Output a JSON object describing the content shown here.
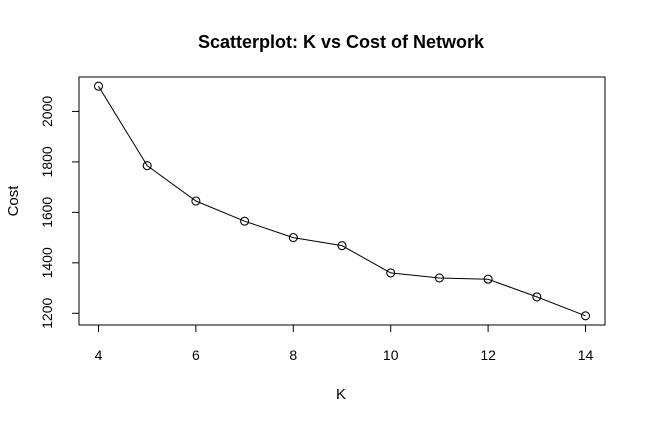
{
  "chart_data": {
    "type": "line",
    "title": "Scatterplot: K vs Cost of Network",
    "xlabel": "K",
    "ylabel": "Cost",
    "x": [
      4,
      5,
      6,
      7,
      8,
      9,
      10,
      11,
      12,
      13,
      14
    ],
    "series": [
      {
        "values": [
          2100,
          1785,
          1645,
          1565,
          1500,
          1468,
          1360,
          1340,
          1335,
          1265,
          1190
        ]
      }
    ],
    "xticks": [
      4,
      6,
      8,
      10,
      12,
      14
    ],
    "yticks": [
      1200,
      1400,
      1600,
      1800,
      2000
    ],
    "xlim": [
      3.6,
      14.4
    ],
    "ylim": [
      1153.6,
      2136.4
    ],
    "grid": false,
    "markers": "open-circle",
    "colors": {
      "line": "#000000",
      "marker": "#000000",
      "background": "#ffffff"
    }
  }
}
